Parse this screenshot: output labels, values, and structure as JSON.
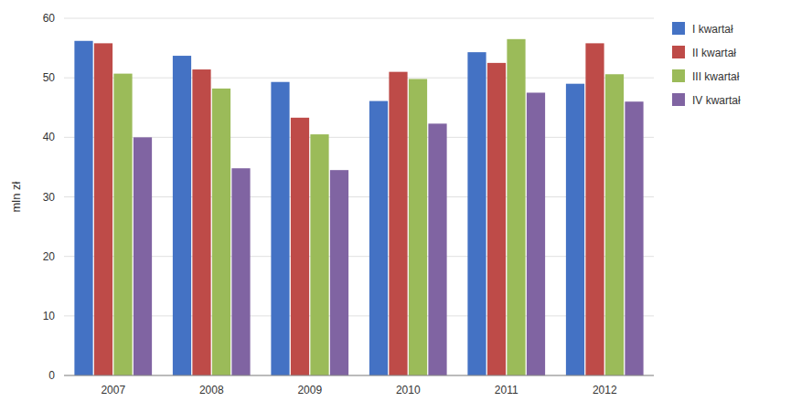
{
  "chart_data": {
    "type": "bar",
    "ylabel": "mln zł",
    "categories": [
      "2007",
      "2008",
      "2009",
      "2010",
      "2011",
      "2012"
    ],
    "series": [
      {
        "name": "I kwartał",
        "color": "#4472C4",
        "values": [
          56.2,
          53.7,
          49.3,
          46.1,
          54.3,
          49.0
        ]
      },
      {
        "name": "II kwartał",
        "color": "#BE4B48",
        "values": [
          55.8,
          51.4,
          43.3,
          51.0,
          52.5,
          55.8
        ]
      },
      {
        "name": "III kwartał",
        "color": "#9BBB59",
        "values": [
          50.7,
          48.2,
          40.5,
          49.8,
          56.5,
          50.6
        ]
      },
      {
        "name": "IV kwartał",
        "color": "#8064A2",
        "values": [
          40.0,
          34.8,
          34.5,
          42.3,
          47.5,
          46.0
        ]
      }
    ],
    "ylim": [
      0,
      60
    ],
    "yticks": [
      0,
      10,
      20,
      30,
      40,
      50,
      60
    ],
    "grid": true,
    "legend": "right"
  }
}
